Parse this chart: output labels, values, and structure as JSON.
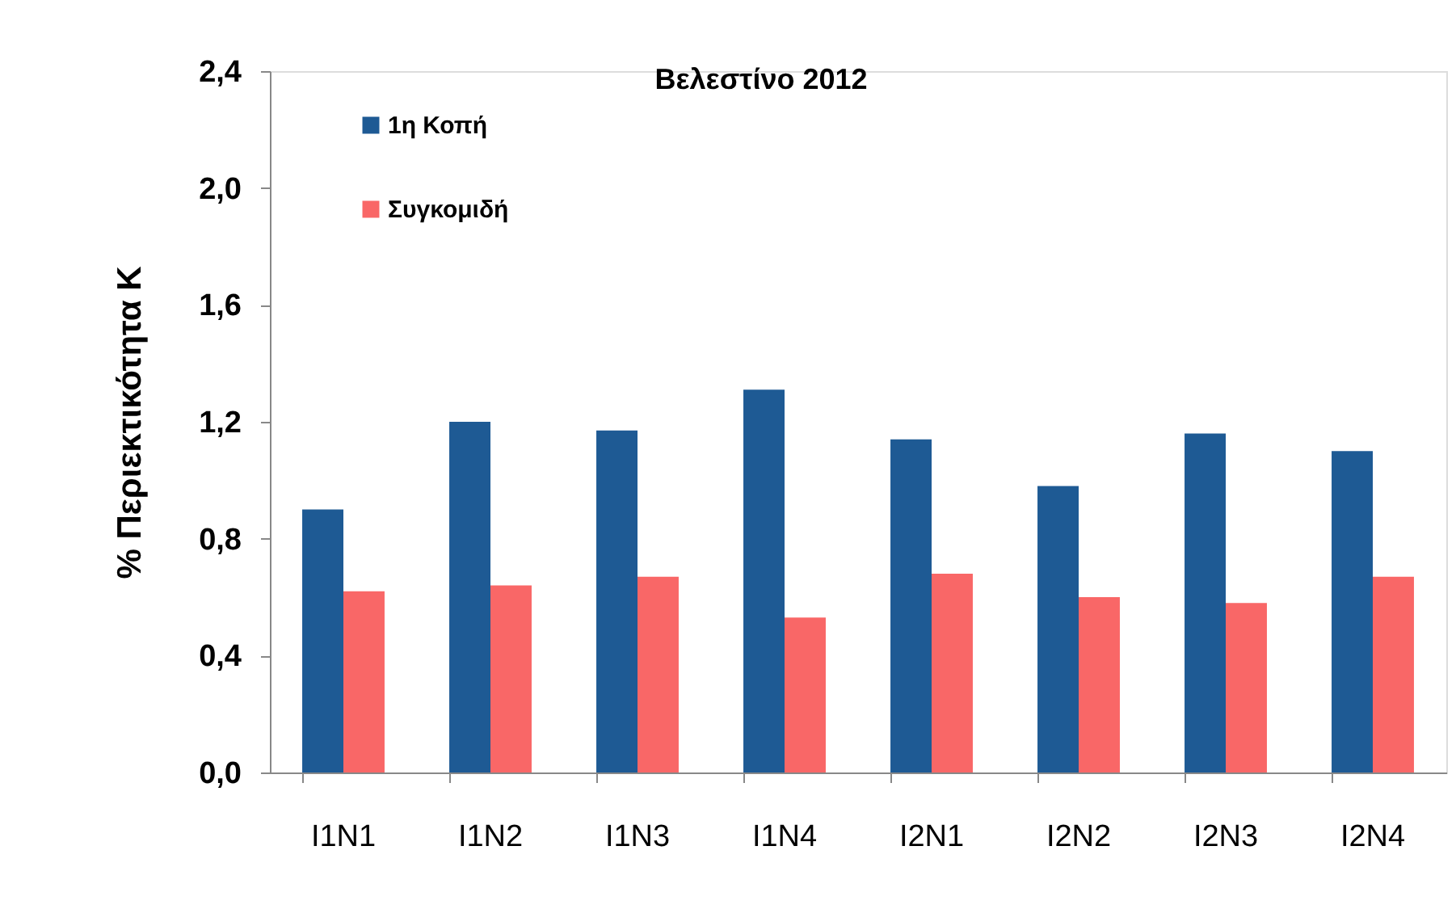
{
  "chart_data": {
    "type": "bar",
    "title": "Βελεστίνο 2012",
    "ylabel": "% Περιεκτικότητα K",
    "categories": [
      "I1N1",
      "I1N2",
      "I1N3",
      "I1N4",
      "I2N1",
      "I2N2",
      "I2N3",
      "I2N4"
    ],
    "series": [
      {
        "name": "1η Κοπή",
        "color": "#1e5a94",
        "values": [
          0.9,
          1.2,
          1.17,
          1.31,
          1.14,
          0.98,
          1.16,
          1.1
        ]
      },
      {
        "name": "Συγκομιδή",
        "color": "#f96767",
        "values": [
          0.62,
          0.64,
          0.67,
          0.53,
          0.68,
          0.6,
          0.58,
          0.67
        ]
      }
    ],
    "ylim": [
      0,
      2.4
    ],
    "yticks": [
      {
        "value": 0,
        "label": "0,0"
      },
      {
        "value": 0.4,
        "label": "0,4"
      },
      {
        "value": 0.8,
        "label": "0,8"
      },
      {
        "value": 1.2,
        "label": "1,2"
      },
      {
        "value": 1.6,
        "label": "1,6"
      },
      {
        "value": 2.0,
        "label": "2,0"
      },
      {
        "value": 2.4,
        "label": "2,4"
      }
    ],
    "legend": "top left"
  }
}
